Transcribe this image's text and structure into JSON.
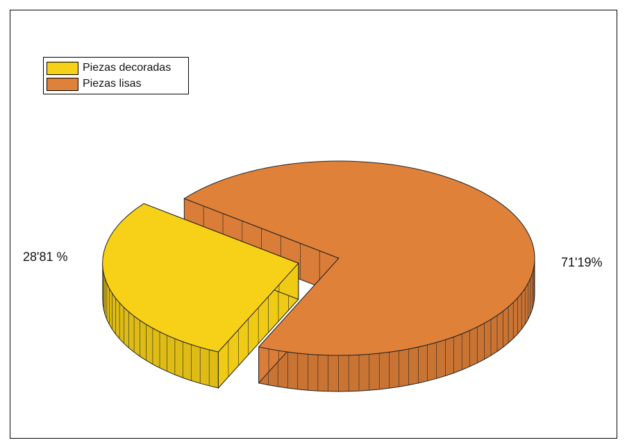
{
  "chart_data": {
    "type": "pie",
    "title": "",
    "series": [
      {
        "name": "Piezas decoradas",
        "value": 28.81,
        "label": "28'81 %",
        "color": "#F7D117"
      },
      {
        "name": "Piezas lisas",
        "value": 71.19,
        "label": "71'19%",
        "color": "#E0813A"
      }
    ],
    "legend_position": "top-left",
    "style": "3D exploded pie"
  }
}
